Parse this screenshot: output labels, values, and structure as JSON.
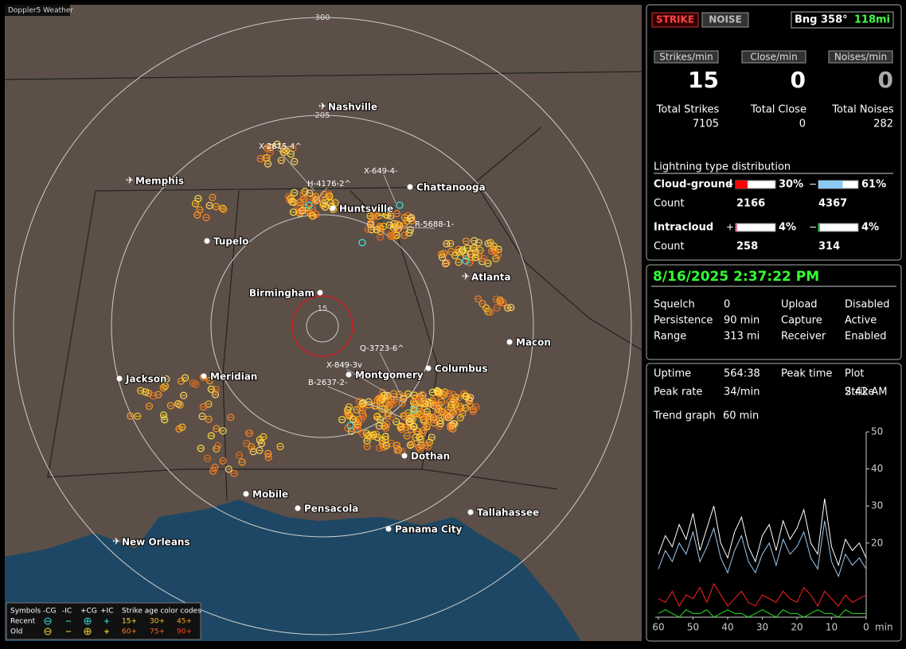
{
  "map": {
    "title": "Doppler5 Weather",
    "range_labels": [
      "300",
      "205",
      "15"
    ],
    "cities": [
      {
        "name": "Nashville",
        "airport": true
      },
      {
        "name": "Memphis",
        "airport": true
      },
      {
        "name": "Chattanooga",
        "airport": false
      },
      {
        "name": "Huntsville",
        "airport": false
      },
      {
        "name": "Tupelo",
        "airport": false
      },
      {
        "name": "Birmingham",
        "airport": false
      },
      {
        "name": "Atlanta",
        "airport": true
      },
      {
        "name": "Macon",
        "airport": false
      },
      {
        "name": "Jackson",
        "airport": false
      },
      {
        "name": "Meridian",
        "airport": false
      },
      {
        "name": "Montgomery",
        "airport": false
      },
      {
        "name": "Columbus",
        "airport": false
      },
      {
        "name": "Dothan",
        "airport": false
      },
      {
        "name": "Mobile",
        "airport": false
      },
      {
        "name": "Pensacola",
        "airport": false
      },
      {
        "name": "Tallahassee",
        "airport": false
      },
      {
        "name": "Panama City",
        "airport": false
      },
      {
        "name": "New Orleans",
        "airport": true
      }
    ],
    "storm_cells": [
      "X-2815-4^",
      "H-4176-2^",
      "X-649-4-",
      "R-5688-1-",
      "Q-3723-6^",
      "X-849-3v",
      "B-2637-2-"
    ],
    "legend": {
      "symbols": "Symbols",
      "types": [
        "-CG",
        "-IC",
        "+CG",
        "+IC"
      ],
      "age_title": "Strike age color codes",
      "recent": "Recent",
      "old": "Old",
      "recent_ages": [
        "15+",
        "30+",
        "45+"
      ],
      "old_ages": [
        "60+",
        "75+",
        "90+"
      ]
    }
  },
  "status": {
    "buttons": [
      "STRIKE",
      "NOISE"
    ],
    "bearing": "Bng 358°",
    "distance": "118mi",
    "rates": [
      {
        "label": "Strikes/min",
        "value": 15
      },
      {
        "label": "Close/min",
        "value": 0
      },
      {
        "label": "Noises/min",
        "value": 0
      }
    ],
    "totals": [
      {
        "label": "Total Strikes",
        "value": 7105
      },
      {
        "label": "Total Close",
        "value": 0
      },
      {
        "label": "Total Noises",
        "value": 282
      }
    ],
    "distribution": {
      "title": "Lightning type distribution",
      "cloud_ground": {
        "label": "Cloud-ground",
        "count_label": "Count",
        "plus": {
          "value": 30,
          "label": "30%"
        },
        "minus": {
          "value": 61,
          "label": "61%"
        },
        "plus_count": 2166,
        "minus_count": 4367
      },
      "intracloud": {
        "label": "Intracloud",
        "count_label": "Count",
        "plus": {
          "value": 4,
          "label": "4%"
        },
        "minus": {
          "value": 4,
          "label": "4%"
        },
        "plus_count": 258,
        "minus_count": 314
      }
    }
  },
  "settings": {
    "datetime": "8/16/2025 2:37:22 PM",
    "fields": [
      {
        "label": "Squelch",
        "value": "0"
      },
      {
        "label": "Persistence",
        "value": "90 min"
      },
      {
        "label": "Range",
        "value": "313 mi"
      },
      {
        "label": "Upload",
        "value": "Disabled"
      },
      {
        "label": "Capture",
        "value": "Active"
      },
      {
        "label": "Receiver",
        "value": "Enabled"
      }
    ]
  },
  "stats": {
    "fields": [
      {
        "label": "Uptime",
        "value": "564:38"
      },
      {
        "label": "Peak time",
        "value": "2:42 AM"
      },
      {
        "label": "Plot",
        "value": "Strike"
      },
      {
        "label": "Peak rate",
        "value": "34/min"
      }
    ],
    "trend_label": "Trend graph",
    "trend_value": "60 min"
  },
  "trend": {
    "x": [
      60,
      58,
      56,
      54,
      52,
      50,
      48,
      46,
      44,
      42,
      40,
      38,
      36,
      34,
      32,
      30,
      28,
      26,
      24,
      22,
      20,
      18,
      16,
      14,
      12,
      10,
      8,
      6,
      4,
      2,
      0
    ],
    "xlim": [
      60,
      0
    ],
    "ylim": [
      0,
      50
    ],
    "xticks": [
      60,
      50,
      40,
      30,
      20,
      10,
      0
    ],
    "yticks": [
      20,
      30,
      40,
      50
    ],
    "x_unit": "min",
    "series": [
      {
        "color": "#ffffff",
        "values": [
          17,
          22,
          19,
          25,
          21,
          28,
          18,
          24,
          30,
          20,
          16,
          23,
          27,
          19,
          15,
          22,
          25,
          18,
          26,
          21,
          24,
          29,
          20,
          17,
          32,
          19,
          14,
          21,
          18,
          20,
          16
        ]
      },
      {
        "color": "#9ec8f0",
        "values": [
          13,
          18,
          15,
          20,
          17,
          23,
          15,
          19,
          24,
          16,
          12,
          18,
          22,
          15,
          12,
          17,
          20,
          14,
          21,
          17,
          19,
          23,
          16,
          13,
          26,
          15,
          11,
          17,
          14,
          16,
          13
        ]
      },
      {
        "color": "#ff2020",
        "values": [
          5,
          4,
          7,
          3,
          6,
          5,
          8,
          4,
          9,
          6,
          3,
          5,
          7,
          4,
          3,
          6,
          5,
          4,
          7,
          5,
          4,
          8,
          6,
          3,
          7,
          5,
          3,
          6,
          4,
          5,
          6
        ]
      },
      {
        "color": "#20e020",
        "values": [
          1,
          2,
          1,
          0,
          2,
          1,
          1,
          2,
          0,
          1,
          2,
          1,
          1,
          0,
          1,
          2,
          1,
          0,
          2,
          1,
          1,
          0,
          1,
          2,
          1,
          1,
          0,
          2,
          1,
          1,
          1
        ]
      }
    ]
  }
}
